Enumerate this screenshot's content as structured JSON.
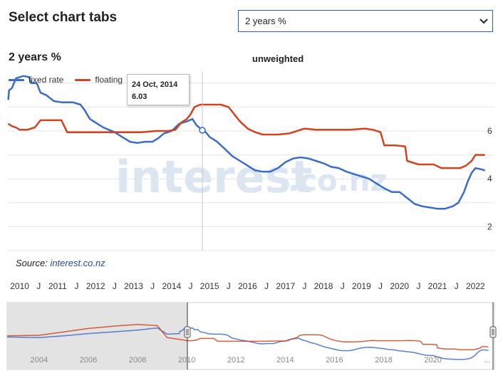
{
  "header": {
    "title": "Select chart tabs",
    "select_value": "2 years %"
  },
  "chart_title": "2 years %",
  "chart_subtitle": "unweighted",
  "watermark": {
    "main": "interest",
    "suffix": ".co.nz"
  },
  "source": {
    "label": "Source:",
    "link": "interest.co.nz"
  },
  "tooltip": {
    "date": "24 Oct, 2014",
    "value": "6.03"
  },
  "colors": {
    "fixed": "#3a6cc8",
    "floating": "#d0431c",
    "grid": "#e6e6e6",
    "navigator_mask": "#e3e3e3"
  },
  "chart_data": {
    "type": "line",
    "title": "2 years %",
    "subtitle": "unweighted",
    "x_range": [
      2009.67,
      2022.5
    ],
    "y_range": [
      1,
      8.5
    ],
    "y_ticks": [
      2,
      4,
      6
    ],
    "y_axis_position": "right",
    "x_tick_labels": [
      "2010",
      "J",
      "2011",
      "J",
      "2012",
      "J",
      "2013",
      "J",
      "2014",
      "J",
      "2015",
      "J",
      "2016",
      "J",
      "2017",
      "J",
      "2018",
      "J",
      "2019",
      "J",
      "2020",
      "J",
      "2021",
      "J",
      "2022"
    ],
    "grid": true,
    "legend": "top-left",
    "series": [
      {
        "name": "fixed rate",
        "color": "#3a6cc8",
        "points": [
          [
            2009.7,
            7.3
          ],
          [
            2009.72,
            7.7
          ],
          [
            2009.8,
            7.8
          ],
          [
            2009.9,
            8.2
          ],
          [
            2010.1,
            8.3
          ],
          [
            2010.25,
            8.25
          ],
          [
            2010.3,
            8.0
          ],
          [
            2010.45,
            8.0
          ],
          [
            2010.55,
            7.6
          ],
          [
            2010.7,
            7.5
          ],
          [
            2010.9,
            7.25
          ],
          [
            2011.1,
            7.2
          ],
          [
            2011.4,
            7.2
          ],
          [
            2011.6,
            7.1
          ],
          [
            2011.7,
            6.9
          ],
          [
            2011.85,
            6.5
          ],
          [
            2012.0,
            6.35
          ],
          [
            2012.2,
            6.15
          ],
          [
            2012.5,
            5.95
          ],
          [
            2012.7,
            5.75
          ],
          [
            2012.9,
            5.55
          ],
          [
            2013.1,
            5.5
          ],
          [
            2013.3,
            5.55
          ],
          [
            2013.5,
            5.55
          ],
          [
            2013.65,
            5.7
          ],
          [
            2013.8,
            5.9
          ],
          [
            2014.0,
            6.0
          ],
          [
            2014.2,
            6.3
          ],
          [
            2014.4,
            6.4
          ],
          [
            2014.55,
            6.5
          ],
          [
            2014.65,
            6.25
          ],
          [
            2014.81,
            6.03
          ],
          [
            2014.9,
            5.95
          ],
          [
            2015.0,
            5.75
          ],
          [
            2015.2,
            5.55
          ],
          [
            2015.4,
            5.25
          ],
          [
            2015.6,
            4.95
          ],
          [
            2015.8,
            4.75
          ],
          [
            2016.0,
            4.55
          ],
          [
            2016.2,
            4.35
          ],
          [
            2016.4,
            4.3
          ],
          [
            2016.6,
            4.3
          ],
          [
            2016.8,
            4.45
          ],
          [
            2017.0,
            4.7
          ],
          [
            2017.2,
            4.85
          ],
          [
            2017.4,
            4.9
          ],
          [
            2017.6,
            4.85
          ],
          [
            2017.8,
            4.75
          ],
          [
            2018.0,
            4.65
          ],
          [
            2018.2,
            4.5
          ],
          [
            2018.4,
            4.45
          ],
          [
            2018.6,
            4.3
          ],
          [
            2018.8,
            4.2
          ],
          [
            2019.0,
            4.1
          ],
          [
            2019.2,
            4.0
          ],
          [
            2019.4,
            3.8
          ],
          [
            2019.6,
            3.6
          ],
          [
            2019.8,
            3.45
          ],
          [
            2020.0,
            3.45
          ],
          [
            2020.2,
            3.2
          ],
          [
            2020.4,
            2.95
          ],
          [
            2020.6,
            2.85
          ],
          [
            2020.8,
            2.8
          ],
          [
            2021.0,
            2.75
          ],
          [
            2021.2,
            2.75
          ],
          [
            2021.4,
            2.85
          ],
          [
            2021.55,
            3.0
          ],
          [
            2021.7,
            3.45
          ],
          [
            2021.8,
            3.9
          ],
          [
            2021.9,
            4.25
          ],
          [
            2022.0,
            4.45
          ],
          [
            2022.15,
            4.4
          ],
          [
            2022.25,
            4.35
          ]
        ]
      },
      {
        "name": "floating",
        "color": "#d0431c",
        "points": [
          [
            2009.7,
            6.3
          ],
          [
            2009.8,
            6.2
          ],
          [
            2009.9,
            6.15
          ],
          [
            2010.0,
            6.05
          ],
          [
            2010.2,
            6.05
          ],
          [
            2010.4,
            6.15
          ],
          [
            2010.55,
            6.45
          ],
          [
            2010.8,
            6.45
          ],
          [
            2011.1,
            6.45
          ],
          [
            2011.25,
            5.95
          ],
          [
            2011.5,
            5.95
          ],
          [
            2011.8,
            5.95
          ],
          [
            2012.1,
            5.95
          ],
          [
            2012.4,
            5.95
          ],
          [
            2012.8,
            5.95
          ],
          [
            2013.2,
            5.95
          ],
          [
            2013.6,
            6.0
          ],
          [
            2013.9,
            6.0
          ],
          [
            2014.1,
            6.05
          ],
          [
            2014.25,
            6.35
          ],
          [
            2014.4,
            6.5
          ],
          [
            2014.5,
            6.7
          ],
          [
            2014.6,
            7.0
          ],
          [
            2014.75,
            7.1
          ],
          [
            2015.0,
            7.1
          ],
          [
            2015.3,
            7.1
          ],
          [
            2015.5,
            7.0
          ],
          [
            2015.65,
            6.7
          ],
          [
            2015.8,
            6.4
          ],
          [
            2016.0,
            6.1
          ],
          [
            2016.2,
            5.95
          ],
          [
            2016.4,
            5.85
          ],
          [
            2016.8,
            5.85
          ],
          [
            2017.1,
            5.9
          ],
          [
            2017.3,
            6.0
          ],
          [
            2017.5,
            6.1
          ],
          [
            2017.8,
            6.05
          ],
          [
            2018.2,
            6.05
          ],
          [
            2018.7,
            6.05
          ],
          [
            2019.1,
            6.1
          ],
          [
            2019.3,
            6.05
          ],
          [
            2019.5,
            5.95
          ],
          [
            2019.6,
            5.4
          ],
          [
            2019.9,
            5.4
          ],
          [
            2020.15,
            5.35
          ],
          [
            2020.2,
            4.75
          ],
          [
            2020.5,
            4.6
          ],
          [
            2020.9,
            4.6
          ],
          [
            2021.1,
            4.45
          ],
          [
            2021.6,
            4.45
          ],
          [
            2021.75,
            4.55
          ],
          [
            2021.9,
            4.75
          ],
          [
            2022.0,
            5.0
          ],
          [
            2022.25,
            5.0
          ]
        ]
      }
    ],
    "navigator": {
      "x_tick_labels": [
        "2004",
        "2006",
        "2008",
        "2010",
        "2012",
        "2014",
        "2016",
        "2018",
        "2020",
        "..."
      ],
      "selected_range": [
        2009.67,
        2022.5
      ]
    }
  }
}
